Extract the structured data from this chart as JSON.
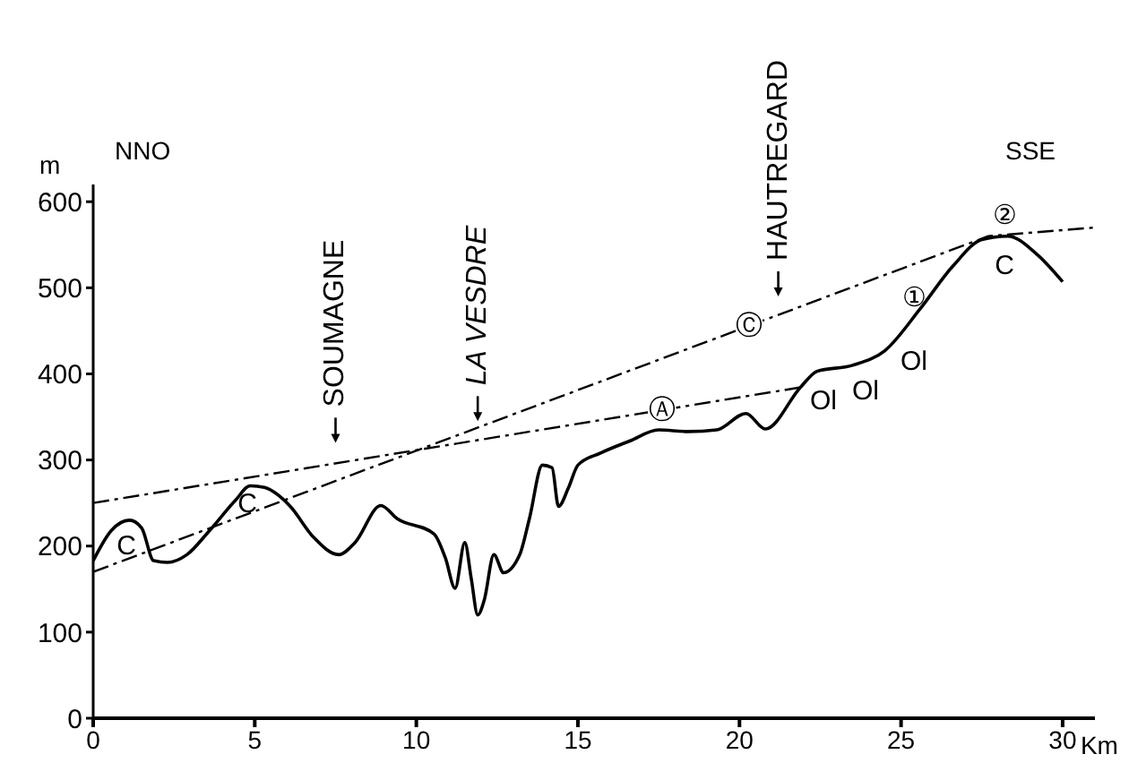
{
  "chart_data": {
    "type": "line",
    "xlabel": "Km",
    "ylabel": "m",
    "xlim": [
      0,
      31
    ],
    "xticks": [
      0,
      5,
      10,
      15,
      20,
      25,
      30
    ],
    "ylim": [
      0,
      620
    ],
    "yticks": [
      0,
      100,
      200,
      300,
      400,
      500,
      600
    ],
    "grid": false,
    "legend": false,
    "marker": "none",
    "series": [
      {
        "color": "#000000",
        "line_style": "solid",
        "x": [
          0,
          0.56,
          1.12,
          1.5,
          1.87,
          2.3,
          2.9,
          3.6,
          4.4,
          4.86,
          5.3,
          6.1,
          6.8,
          7.6,
          8.1,
          8.9,
          9.4,
          10.55,
          10.9,
          11.2,
          11.5,
          11.7,
          11.9,
          12.1,
          12.4,
          12.7,
          13.2,
          13.5,
          13.9,
          14.2,
          14.4,
          14.7,
          15,
          15.7,
          16.6,
          17.5,
          18.4,
          19.3,
          20.2,
          20.8,
          21.9,
          22.4,
          23.5,
          24.5,
          25.6,
          26.6,
          27.5,
          28.3,
          29.2,
          30
        ],
        "values": [
          183,
          218,
          230,
          221,
          183,
          181,
          190,
          218,
          253,
          270,
          268,
          246,
          211,
          190,
          204,
          247,
          232,
          214,
          186,
          151,
          204,
          162,
          120,
          137,
          190,
          169,
          190,
          232,
          294,
          291,
          246,
          267,
          294,
          308,
          322,
          335,
          333,
          335,
          354,
          336,
          385,
          403,
          410,
          427,
          476,
          525,
          556,
          560,
          539,
          507
        ]
      },
      {
        "color": "#000000",
        "line_style": "dashed",
        "x": [
          0,
          22
        ],
        "values": [
          250,
          385
        ]
      },
      {
        "color": "#000000",
        "line_style": "dashed",
        "x": [
          0,
          27.7,
          31
        ],
        "values": [
          170,
          560,
          570
        ]
      }
    ],
    "annotations": [
      "NNO",
      "SSE",
      "SOUMAGNE",
      "LA VESDRE",
      "HAUTREGARD",
      "C",
      "C",
      "①",
      "②",
      "C",
      "Ol",
      "Ol",
      "Ol",
      {
        "text": "Ⓐ",
        "x": 17.6,
        "y": 358
      },
      {
        "text": "Ⓒ",
        "x": 20.3,
        "y": 456
      }
    ]
  }
}
